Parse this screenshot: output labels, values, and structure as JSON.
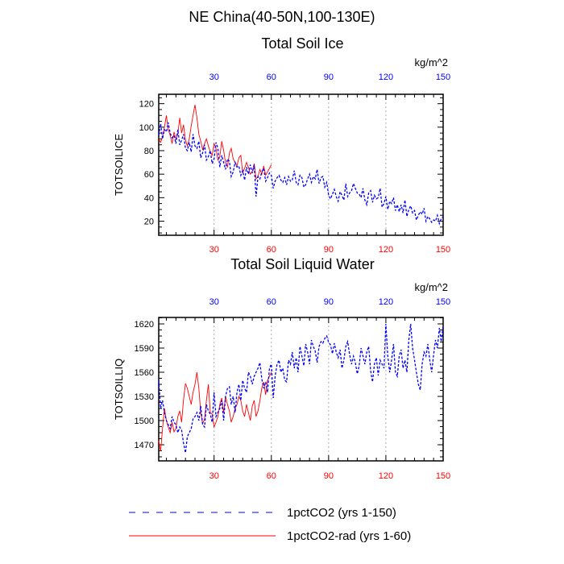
{
  "page_title": "NE China(40-50N,100-130E)",
  "legend": [
    {
      "label": "1pctCO2 (yrs 1-150)",
      "color": "#0000ff",
      "style": "dashed"
    },
    {
      "label": "1pctCO2-rad (yrs 1-60)",
      "color": "#ff0000",
      "style": "solid"
    }
  ],
  "colors": {
    "series_blue": "#0000ff",
    "series_red": "#ff0000",
    "top_ticks": "#0000ff",
    "bottom_ticks": "#ff0000"
  },
  "chart_data": [
    {
      "type": "line",
      "title": "Total Soil Ice",
      "units": "kg/m^2",
      "ylabel": "TOTSOILICE",
      "xlim": [
        1,
        150
      ],
      "ylim": [
        8,
        128
      ],
      "xticks": [
        30,
        60,
        90,
        120,
        150
      ],
      "yticks": [
        20,
        40,
        60,
        80,
        100,
        120
      ],
      "grid_x": true,
      "series": [
        {
          "name": "1pctCO2 (yrs 1-150)",
          "color": "#0000ff",
          "style": "dashed",
          "x_start": 1,
          "values": [
            93,
            103,
            90,
            98,
            96,
            104,
            95,
            91,
            93,
            86,
            98,
            85,
            89,
            94,
            82,
            80,
            87,
            79,
            94,
            84,
            82,
            88,
            74,
            78,
            85,
            72,
            75,
            80,
            69,
            73,
            87,
            82,
            66,
            76,
            70,
            64,
            73,
            71,
            58,
            62,
            70,
            66,
            67,
            59,
            63,
            55,
            66,
            60,
            68,
            61,
            68,
            41,
            58,
            56,
            62,
            65,
            54,
            57,
            61,
            59,
            48,
            54,
            57,
            59,
            55,
            53,
            57,
            51,
            58,
            54,
            55,
            63,
            53,
            51,
            59,
            57,
            49,
            51,
            56,
            60,
            53,
            58,
            56,
            64,
            52,
            57,
            58,
            49,
            53,
            42,
            39,
            43,
            47,
            41,
            37,
            45,
            42,
            38,
            52,
            41,
            44,
            46,
            52,
            48,
            44,
            43,
            40,
            48,
            38,
            34,
            44,
            46,
            36,
            42,
            39,
            40,
            48,
            32,
            35,
            41,
            30,
            37,
            35,
            40,
            29,
            34,
            28,
            34,
            27,
            38,
            24,
            30,
            33,
            27,
            29,
            21,
            25,
            28,
            26,
            31,
            20,
            24,
            22,
            19,
            21,
            20,
            25,
            18,
            22,
            24
          ]
        },
        {
          "name": "1pctCO2-rad (yrs 1-60)",
          "color": "#ff0000",
          "style": "solid",
          "x_start": 1,
          "values": [
            90,
            87,
            92,
            100,
            110,
            98,
            93,
            86,
            96,
            90,
            94,
            108,
            95,
            102,
            89,
            84,
            90,
            101,
            110,
            119,
            108,
            94,
            88,
            81,
            86,
            90,
            84,
            79,
            76,
            86,
            82,
            72,
            75,
            88,
            80,
            70,
            66,
            78,
            82,
            73,
            70,
            67,
            74,
            76,
            61,
            65,
            70,
            66,
            60,
            62,
            69,
            56,
            58,
            64,
            60,
            67,
            59,
            62,
            65,
            68
          ]
        }
      ]
    },
    {
      "type": "line",
      "title": "Total Soil Liquid Water",
      "units": "kg/m^2",
      "ylabel": "TOTSOILLIQ",
      "xlim": [
        1,
        150
      ],
      "ylim": [
        1450,
        1628
      ],
      "xticks": [
        30,
        60,
        90,
        120,
        150
      ],
      "yticks": [
        1470,
        1500,
        1530,
        1560,
        1590,
        1620
      ],
      "grid_x": true,
      "series": [
        {
          "name": "1pctCO2 (yrs 1-150)",
          "color": "#0000ff",
          "style": "dashed",
          "x_start": 1,
          "values": [
            1550,
            1515,
            1525,
            1510,
            1500,
            1495,
            1490,
            1505,
            1498,
            1495,
            1485,
            1492,
            1488,
            1472,
            1460,
            1480,
            1485,
            1490,
            1502,
            1505,
            1510,
            1500,
            1518,
            1495,
            1492,
            1520,
            1512,
            1508,
            1498,
            1535,
            1505,
            1510,
            1515,
            1525,
            1500,
            1530,
            1540,
            1542,
            1520,
            1530,
            1510,
            1535,
            1545,
            1525,
            1550,
            1540,
            1535,
            1560,
            1555,
            1545,
            1555,
            1560,
            1565,
            1572,
            1552,
            1540,
            1548,
            1535,
            1565,
            1570,
            1528,
            1555,
            1570,
            1575,
            1560,
            1565,
            1550,
            1548,
            1575,
            1570,
            1585,
            1565,
            1578,
            1560,
            1592,
            1580,
            1568,
            1595,
            1585,
            1570,
            1600,
            1592,
            1586,
            1572,
            1592,
            1598,
            1596,
            1602,
            1605,
            1597,
            1594,
            1583,
            1596,
            1585,
            1578,
            1588,
            1565,
            1575,
            1592,
            1598,
            1582,
            1570,
            1580,
            1572,
            1558,
            1568,
            1590,
            1580,
            1570,
            1585,
            1592,
            1562,
            1548,
            1570,
            1578,
            1556,
            1575,
            1570,
            1565,
            1620,
            1580,
            1560,
            1575,
            1595,
            1560,
            1555,
            1580,
            1588,
            1565,
            1575,
            1560,
            1600,
            1620,
            1590,
            1575,
            1560,
            1545,
            1538,
            1570,
            1585,
            1580,
            1595,
            1575,
            1560,
            1582,
            1600,
            1590,
            1615,
            1598,
            1618
          ]
        },
        {
          "name": "1pctCO2-rad (yrs 1-60)",
          "color": "#ff0000",
          "style": "solid",
          "x_start": 1,
          "values": [
            1475,
            1462,
            1490,
            1515,
            1500,
            1492,
            1485,
            1498,
            1486,
            1490,
            1505,
            1512,
            1498,
            1526,
            1546,
            1540,
            1530,
            1520,
            1535,
            1545,
            1560,
            1540,
            1510,
            1496,
            1502,
            1525,
            1545,
            1510,
            1508,
            1492,
            1498,
            1505,
            1520,
            1528,
            1510,
            1530,
            1520,
            1512,
            1498,
            1505,
            1515,
            1520,
            1530,
            1525,
            1512,
            1505,
            1520,
            1510,
            1500,
            1518,
            1525,
            1505,
            1512,
            1525,
            1540,
            1548,
            1532,
            1550,
            1555,
            1560
          ]
        }
      ]
    }
  ]
}
